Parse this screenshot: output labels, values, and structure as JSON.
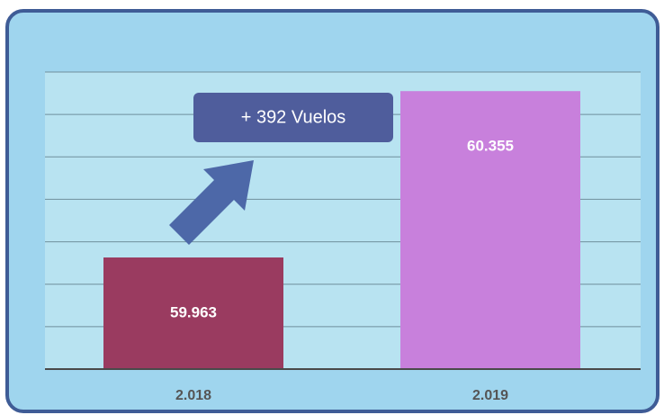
{
  "chart_data": {
    "type": "bar",
    "categories": [
      "2.018",
      "2.019"
    ],
    "values": [
      59963,
      60355
    ],
    "value_labels": [
      "59.963",
      "60.355"
    ],
    "colors": [
      "#9a3b60",
      "#c880dc"
    ],
    "annotation": "+ 392 Vuelos",
    "ylim": [
      59700,
      60400
    ],
    "yticks": [
      59700,
      59800,
      59900,
      60000,
      60100,
      60200,
      60300,
      60400
    ],
    "grid": true
  }
}
